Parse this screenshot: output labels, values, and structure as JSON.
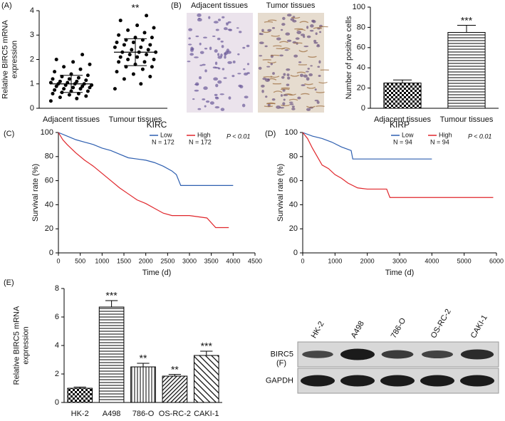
{
  "chart_data": [
    {
      "type": "strip",
      "panel": "(A)",
      "ylabel": [
        "Relative BIRC5 mRNA",
        "expression"
      ],
      "categories": [
        "Adjacent tissues",
        "Tumour tissues"
      ],
      "values": [
        [
          0.3,
          0.4,
          0.45,
          0.5,
          0.55,
          0.6,
          0.6,
          0.65,
          0.7,
          0.7,
          0.75,
          0.8,
          0.8,
          0.85,
          0.85,
          0.9,
          0.9,
          0.95,
          0.95,
          1.0,
          1.0,
          1.0,
          1.05,
          1.05,
          1.1,
          1.1,
          1.15,
          1.2,
          1.2,
          1.25,
          1.3,
          1.35,
          1.4,
          1.5,
          1.6,
          1.7,
          1.8,
          1.9,
          2.0,
          2.2
        ],
        [
          0.8,
          1.0,
          1.2,
          1.3,
          1.4,
          1.5,
          1.6,
          1.7,
          1.7,
          1.8,
          1.9,
          1.9,
          2.0,
          2.0,
          2.1,
          2.1,
          2.2,
          2.2,
          2.3,
          2.3,
          2.3,
          2.4,
          2.4,
          2.5,
          2.5,
          2.6,
          2.6,
          2.7,
          2.7,
          2.8,
          2.8,
          2.9,
          2.9,
          3.0,
          3.1,
          3.2,
          3.3,
          3.4,
          3.6,
          3.8
        ]
      ],
      "mean": [
        1.0,
        2.3
      ],
      "error": [
        0.35,
        0.55
      ],
      "significance": [
        null,
        "**"
      ],
      "color": "#000000",
      "ylim": [
        0,
        4
      ],
      "yticks": [
        0,
        1,
        2,
        3,
        4
      ]
    },
    {
      "type": "bar",
      "panel": "(B)",
      "image_labels": [
        "Adjacent tissues",
        "Tumor tissues"
      ],
      "ylabel": [
        "Number of positive cells"
      ],
      "categories": [
        "Adjacent tissues",
        "Tumour tissues"
      ],
      "values": [
        25,
        75
      ],
      "error": [
        3,
        7
      ],
      "significance": [
        null,
        "***"
      ],
      "patterns": [
        "checker",
        "hlines"
      ],
      "ylim": [
        0,
        100
      ],
      "yticks": [
        0,
        20,
        40,
        60,
        80,
        100
      ]
    },
    {
      "type": "survival",
      "panel": "(C)",
      "title": "KIRC",
      "xlabel": "Time (d)",
      "ylabel": [
        "Survival rate (%)"
      ],
      "xlim": [
        0,
        4500
      ],
      "xticks": [
        0,
        500,
        1000,
        1500,
        2000,
        2500,
        3000,
        3500,
        4000,
        4500
      ],
      "ylim": [
        0,
        100
      ],
      "yticks": [
        0,
        20,
        40,
        60,
        80,
        100
      ],
      "legend_position": "top-right",
      "annotation": "P < 0.01",
      "series": [
        {
          "name": "Low",
          "n_label": "N = 172",
          "color": "#2e5fb0",
          "x": [
            0,
            200,
            400,
            600,
            800,
            1000,
            1200,
            1400,
            1600,
            1800,
            2000,
            2200,
            2400,
            2600,
            2700,
            2800,
            3200,
            3600,
            4000
          ],
          "values": [
            100,
            97,
            94,
            92,
            90,
            87,
            85,
            82,
            79,
            78,
            77,
            75,
            72,
            68,
            65,
            56,
            56,
            56,
            56
          ]
        },
        {
          "name": "High",
          "n_label": "N = 172",
          "color": "#e0262b",
          "x": [
            0,
            100,
            200,
            400,
            600,
            800,
            1000,
            1200,
            1400,
            1600,
            1800,
            2000,
            2200,
            2400,
            2600,
            3000,
            3400,
            3600,
            3900
          ],
          "values": [
            100,
            94,
            90,
            83,
            77,
            72,
            66,
            60,
            54,
            49,
            44,
            41,
            37,
            33,
            31,
            31,
            29,
            21,
            21
          ]
        }
      ]
    },
    {
      "type": "survival",
      "panel": "(D)",
      "title": "KIRP",
      "xlabel": "Time (d)",
      "ylabel": [
        "Survival rate (%)"
      ],
      "xlim": [
        0,
        6000
      ],
      "xticks": [
        0,
        1000,
        2000,
        3000,
        4000,
        5000,
        6000
      ],
      "ylim": [
        0,
        100
      ],
      "yticks": [
        0,
        20,
        40,
        60,
        80,
        100
      ],
      "legend_position": "top-right",
      "annotation": "P < 0.01",
      "series": [
        {
          "name": "Low",
          "n_label": "N = 94",
          "color": "#2e5fb0",
          "x": [
            0,
            300,
            600,
            900,
            1200,
            1500,
            1550,
            2000,
            3000,
            4000
          ],
          "values": [
            100,
            97,
            95,
            92,
            88,
            85,
            78,
            78,
            78,
            78
          ]
        },
        {
          "name": "High",
          "n_label": "N = 94",
          "color": "#e0262b",
          "x": [
            0,
            150,
            300,
            450,
            600,
            800,
            1000,
            1200,
            1400,
            1700,
            2000,
            2600,
            2700,
            4000,
            5900
          ],
          "values": [
            100,
            95,
            87,
            80,
            73,
            70,
            65,
            62,
            58,
            54,
            53,
            53,
            46,
            46,
            46
          ]
        }
      ]
    },
    {
      "type": "bar",
      "panel": "(E)",
      "ylabel": [
        "Relative BIRC5 mRNA",
        "expression"
      ],
      "categories": [
        "HK-2",
        "A498",
        "786-O",
        "OS-RC-2",
        "CAKI-1"
      ],
      "values": [
        1.0,
        6.7,
        2.5,
        1.85,
        3.3
      ],
      "error": [
        0.08,
        0.45,
        0.25,
        0.12,
        0.3
      ],
      "significance": [
        null,
        "***",
        "**",
        "**",
        "***"
      ],
      "patterns": [
        "checker",
        "hlines",
        "vlines",
        "diag",
        "diag2"
      ],
      "ylim": [
        0,
        8
      ],
      "yticks": [
        0,
        2,
        4,
        6,
        8
      ]
    }
  ],
  "blot": {
    "panel": "(F)",
    "lanes": [
      "HK-2",
      "A498",
      "786-O",
      "OS-RC-2",
      "CAKI-1"
    ],
    "rows": [
      "BIRC5",
      "GAPDH"
    ]
  }
}
